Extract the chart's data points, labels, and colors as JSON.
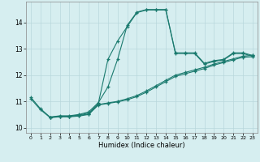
{
  "xlabel": "Humidex (Indice chaleur)",
  "ylabel": "",
  "xlim": [
    -0.5,
    23.5
  ],
  "ylim": [
    9.8,
    14.8
  ],
  "yticks": [
    10,
    11,
    12,
    13,
    14
  ],
  "xticks": [
    0,
    1,
    2,
    3,
    4,
    5,
    6,
    7,
    8,
    9,
    10,
    11,
    12,
    13,
    14,
    15,
    16,
    17,
    18,
    19,
    20,
    21,
    22,
    23
  ],
  "bg_color": "#d6eef0",
  "grid_color": "#b8d8dc",
  "line_color": "#1a7a6e",
  "line1": [
    [
      0,
      11.15
    ],
    [
      1,
      10.72
    ],
    [
      2,
      10.4
    ],
    [
      3,
      10.45
    ],
    [
      4,
      10.45
    ],
    [
      5,
      10.5
    ],
    [
      6,
      10.6
    ],
    [
      7,
      10.95
    ],
    [
      8,
      11.55
    ],
    [
      9,
      12.6
    ],
    [
      10,
      13.9
    ],
    [
      11,
      14.4
    ],
    [
      12,
      14.5
    ],
    [
      13,
      14.5
    ],
    [
      14,
      14.5
    ],
    [
      15,
      12.85
    ],
    [
      16,
      12.85
    ],
    [
      17,
      12.85
    ],
    [
      18,
      12.45
    ],
    [
      19,
      12.55
    ],
    [
      20,
      12.6
    ],
    [
      21,
      12.85
    ],
    [
      22,
      12.85
    ],
    [
      23,
      12.75
    ]
  ],
  "line2": [
    [
      0,
      11.1
    ],
    [
      1,
      10.68
    ],
    [
      2,
      10.38
    ],
    [
      3,
      10.43
    ],
    [
      4,
      10.43
    ],
    [
      5,
      10.48
    ],
    [
      6,
      10.55
    ],
    [
      7,
      10.92
    ],
    [
      8,
      12.6
    ],
    [
      9,
      13.3
    ],
    [
      10,
      13.85
    ],
    [
      11,
      14.38
    ],
    [
      12,
      14.48
    ],
    [
      13,
      14.48
    ],
    [
      14,
      14.48
    ],
    [
      15,
      12.82
    ],
    [
      16,
      12.82
    ],
    [
      17,
      12.82
    ],
    [
      18,
      12.42
    ],
    [
      19,
      12.52
    ],
    [
      20,
      12.58
    ],
    [
      21,
      12.82
    ],
    [
      22,
      12.82
    ],
    [
      23,
      12.72
    ]
  ],
  "line3": [
    [
      2,
      10.4
    ],
    [
      3,
      10.43
    ],
    [
      4,
      10.43
    ],
    [
      5,
      10.46
    ],
    [
      6,
      10.52
    ],
    [
      7,
      10.88
    ],
    [
      8,
      10.94
    ],
    [
      9,
      11.0
    ],
    [
      10,
      11.1
    ],
    [
      11,
      11.22
    ],
    [
      12,
      11.4
    ],
    [
      13,
      11.6
    ],
    [
      14,
      11.8
    ],
    [
      15,
      12.0
    ],
    [
      16,
      12.1
    ],
    [
      17,
      12.2
    ],
    [
      18,
      12.3
    ],
    [
      19,
      12.42
    ],
    [
      20,
      12.52
    ],
    [
      21,
      12.62
    ],
    [
      22,
      12.72
    ],
    [
      23,
      12.75
    ]
  ],
  "line4": [
    [
      2,
      10.38
    ],
    [
      3,
      10.41
    ],
    [
      4,
      10.41
    ],
    [
      5,
      10.44
    ],
    [
      6,
      10.5
    ],
    [
      7,
      10.86
    ],
    [
      8,
      10.92
    ],
    [
      9,
      10.98
    ],
    [
      10,
      11.06
    ],
    [
      11,
      11.18
    ],
    [
      12,
      11.35
    ],
    [
      13,
      11.55
    ],
    [
      14,
      11.75
    ],
    [
      15,
      11.95
    ],
    [
      16,
      12.05
    ],
    [
      17,
      12.15
    ],
    [
      18,
      12.25
    ],
    [
      19,
      12.38
    ],
    [
      20,
      12.48
    ],
    [
      21,
      12.58
    ],
    [
      22,
      12.68
    ],
    [
      23,
      12.7
    ]
  ]
}
